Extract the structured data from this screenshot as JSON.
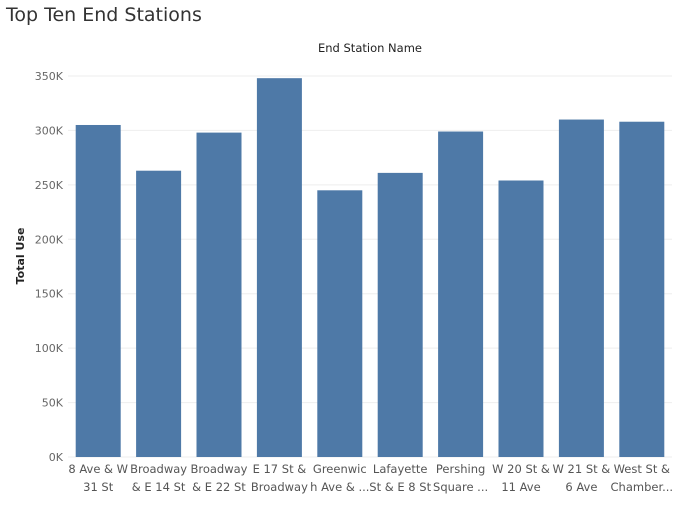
{
  "title": "Top Ten End Stations",
  "chart_data": {
    "type": "bar",
    "title": "Top Ten End Stations",
    "xlabel": "End Station Name",
    "ylabel": "Total Use",
    "categories": [
      "8 Ave & W 31 St",
      "Broadway & E 14 St",
      "Broadway & E 22 St",
      "E 17 St & Broadway",
      "Greenwich Ave & ...",
      "Lafayette St & E 8 St",
      "Pershing Square ...",
      "W 20 St & 11 Ave",
      "W 21 St & 6 Ave",
      "West St & Chamber..."
    ],
    "category_labels": [
      [
        "8 Ave & W",
        "31 St"
      ],
      [
        "Broadway",
        "& E 14 St"
      ],
      [
        "Broadway",
        "& E 22 St"
      ],
      [
        "E 17 St &",
        "Broadway"
      ],
      [
        "Greenwic",
        "h Ave & ..."
      ],
      [
        "Lafayette",
        "St & E 8 St"
      ],
      [
        "Pershing",
        "Square ..."
      ],
      [
        "W 20 St &",
        "11 Ave"
      ],
      [
        "W 21 St &",
        "6 Ave"
      ],
      [
        "West St &",
        "Chamber..."
      ]
    ],
    "values": [
      305000,
      263000,
      298000,
      348000,
      245000,
      261000,
      299000,
      254000,
      310000,
      308000
    ],
    "ylim": [
      0,
      350000
    ],
    "yticks": [
      0,
      50000,
      100000,
      150000,
      200000,
      250000,
      300000,
      350000
    ],
    "ytick_labels": [
      "0K",
      "50K",
      "100K",
      "150K",
      "200K",
      "250K",
      "300K",
      "350K"
    ],
    "grid": true,
    "bar_color": "#4e79a7"
  }
}
